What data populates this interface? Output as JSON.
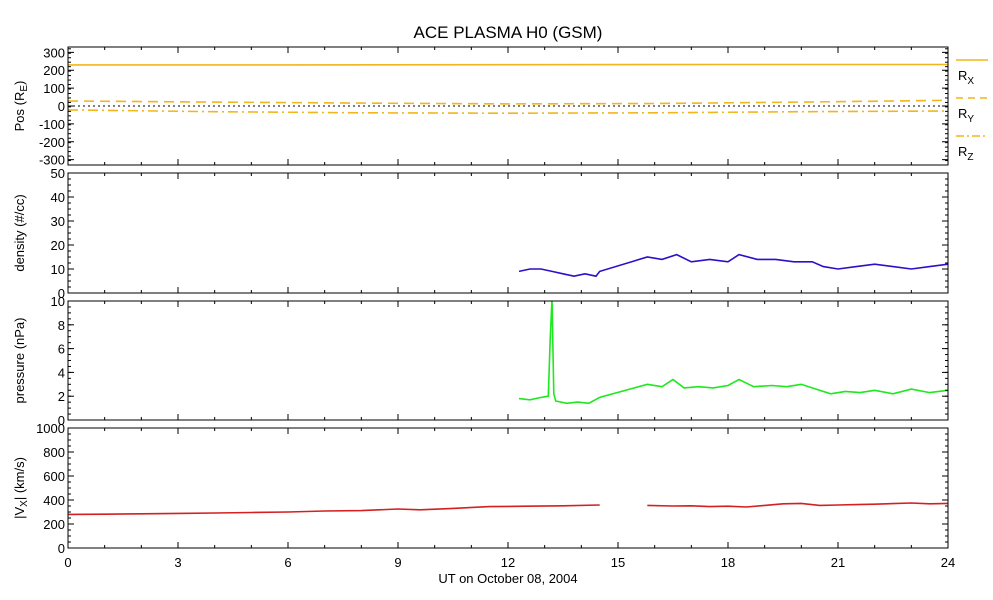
{
  "chart_data": {
    "type": "line",
    "title": "ACE PLASMA H0 (GSM)",
    "xlabel": "UT on October 08, 2004",
    "x_ticks": [
      "0",
      "3",
      "6",
      "9",
      "12",
      "15",
      "18",
      "21",
      "24"
    ],
    "xlim": [
      0,
      24
    ],
    "panels": [
      {
        "ylabel_main": "Pos (R",
        "ylabel_sub": "E",
        "ylabel_end": ")",
        "ylim": [
          -330,
          330
        ],
        "y_ticks": [
          "300",
          "200",
          "100",
          "0",
          "-100",
          "-200",
          "-300"
        ],
        "y_tick_values": [
          300,
          200,
          100,
          0,
          -100,
          -200,
          -300
        ],
        "legend": [
          {
            "main": "R",
            "sub": "X",
            "color": "#f2b51c",
            "dash": "solid"
          },
          {
            "main": "R",
            "sub": "Y",
            "color": "#f2b51c",
            "dash": "dashed"
          },
          {
            "main": "R",
            "sub": "Z",
            "color": "#f2b51c",
            "dash": "dashdot"
          }
        ],
        "series": [
          {
            "name": "RX",
            "color": "#f2b51c",
            "dash": "solid",
            "x": [
              0,
              6,
              12,
              18,
              24
            ],
            "y": [
              230,
              230,
              231,
              232,
              232
            ]
          },
          {
            "name": "RY",
            "color": "#f2b51c",
            "dash": "dashed",
            "x": [
              0,
              4,
              8,
              12,
              16,
              20,
              24
            ],
            "y": [
              28,
              22,
              16,
              12,
              14,
              22,
              32
            ]
          },
          {
            "name": "RZ",
            "color": "#f2b51c",
            "dash": "dashdot",
            "x": [
              0,
              4,
              8,
              12,
              16,
              20,
              24
            ],
            "y": [
              -22,
              -32,
              -38,
              -40,
              -38,
              -32,
              -28
            ]
          },
          {
            "name": "zero",
            "color": "#000000",
            "dash": "dotted",
            "x": [
              0,
              24
            ],
            "y": [
              0,
              0
            ]
          }
        ]
      },
      {
        "ylabel_main": "density (#/cc)",
        "ylim": [
          0,
          50
        ],
        "y_ticks": [
          "50",
          "40",
          "30",
          "20",
          "10",
          "0"
        ],
        "y_tick_values": [
          50,
          40,
          30,
          20,
          10,
          0
        ],
        "series": [
          {
            "name": "density",
            "color": "#2a10c8",
            "dash": "solid",
            "x": [
              12.3,
              12.6,
              12.9,
              13.2,
              13.5,
              13.8,
              14.1,
              14.4,
              14.5,
              15.8,
              16.2,
              16.6,
              17.0,
              17.5,
              18.0,
              18.3,
              18.8,
              19.3,
              19.8,
              20.3,
              20.6,
              21.0,
              21.5,
              22.0,
              22.5,
              23.0,
              23.5,
              24.0
            ],
            "y": [
              9,
              10,
              10,
              9,
              8,
              7,
              8,
              7,
              9,
              15,
              14,
              16,
              13,
              14,
              13,
              16,
              14,
              14,
              13,
              13,
              11,
              10,
              11,
              12,
              11,
              10,
              11,
              12
            ]
          }
        ]
      },
      {
        "ylabel_main": "pressure (nPa)",
        "ylim": [
          0,
          10
        ],
        "y_ticks": [
          "10",
          "8",
          "6",
          "4",
          "2",
          "0"
        ],
        "y_tick_values": [
          10,
          8,
          6,
          4,
          2,
          0
        ],
        "series": [
          {
            "name": "pressure",
            "color": "#1ee81e",
            "dash": "solid",
            "x": [
              12.3,
              12.6,
              12.9,
              13.1,
              13.15,
              13.2,
              13.25,
              13.3,
              13.6,
              13.9,
              14.2,
              14.5,
              15.8,
              16.2,
              16.5,
              16.8,
              17.2,
              17.6,
              18.0,
              18.3,
              18.7,
              19.2,
              19.6,
              20.0,
              20.4,
              20.8,
              21.2,
              21.6,
              22.0,
              22.5,
              23.0,
              23.5,
              24.0
            ],
            "y": [
              1.8,
              1.7,
              1.9,
              2.0,
              6.8,
              10.2,
              2.2,
              1.6,
              1.4,
              1.5,
              1.4,
              1.9,
              3.0,
              2.8,
              3.4,
              2.7,
              2.8,
              2.7,
              2.9,
              3.4,
              2.8,
              2.9,
              2.8,
              3.0,
              2.6,
              2.2,
              2.4,
              2.3,
              2.5,
              2.2,
              2.6,
              2.3,
              2.5
            ]
          }
        ]
      },
      {
        "ylabel_main": "|V",
        "ylabel_sub": "X",
        "ylabel_end": "| (km/s)",
        "ylim": [
          0,
          1000
        ],
        "y_ticks": [
          "1000",
          "800",
          "600",
          "400",
          "200",
          "0"
        ],
        "y_tick_values": [
          1000,
          800,
          600,
          400,
          200,
          0
        ],
        "series": [
          {
            "name": "vx",
            "color": "#d42020",
            "dash": "solid",
            "x": [
              0,
              1,
              2,
              3,
              4,
              5,
              6,
              7,
              8,
              9,
              9.6,
              10.5,
              11.5,
              12.5,
              13.5,
              14.5
            ],
            "y": [
              280,
              282,
              285,
              288,
              292,
              296,
              300,
              308,
              312,
              325,
              318,
              330,
              345,
              348,
              352,
              358
            ]
          },
          {
            "name": "vx2",
            "color": "#d42020",
            "dash": "solid",
            "x": [
              15.8,
              16.5,
              17.0,
              17.5,
              18.0,
              18.5,
              19.0,
              19.5,
              20.0,
              20.5,
              21.0,
              21.5,
              22.0,
              22.5,
              23.0,
              23.5,
              24.0
            ],
            "y": [
              355,
              350,
              352,
              345,
              348,
              342,
              355,
              368,
              372,
              355,
              358,
              362,
              365,
              370,
              375,
              368,
              372
            ]
          }
        ]
      }
    ]
  }
}
